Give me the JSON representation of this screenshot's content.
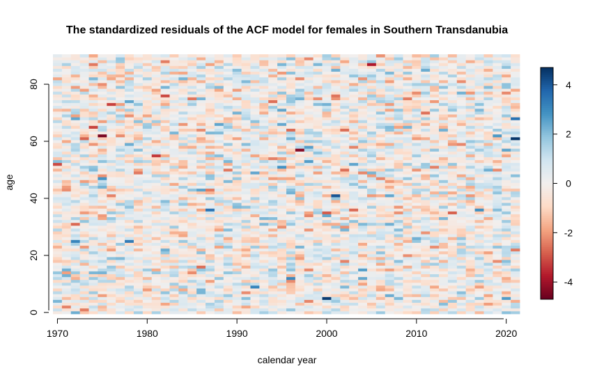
{
  "chart_data": {
    "type": "heatmap",
    "title": "The standardized residuals of the ACF model for females in Southern Transdanubia",
    "xlabel": "calendar year",
    "ylabel": "age",
    "x_range": [
      1970,
      2021
    ],
    "y_range": [
      0,
      90
    ],
    "x_ticks": [
      "1970",
      "1980",
      "1990",
      "2000",
      "2010",
      "2020"
    ],
    "y_ticks": [
      "0",
      "20",
      "40",
      "60",
      "80"
    ],
    "colorbar": {
      "range": [
        -4.7,
        4.7
      ],
      "ticks": [
        "4",
        "2",
        "0",
        "-2",
        "-4"
      ],
      "colors": [
        "#67001f",
        "#b2182b",
        "#d6604d",
        "#f4a582",
        "#fddbc7",
        "#f2efee",
        "#d1e5f0",
        "#92c5de",
        "#4393c3",
        "#2166ac",
        "#053061"
      ]
    },
    "notable_cells": [
      {
        "year": 1974,
        "age": 65,
        "value": -3.2
      },
      {
        "year": 1975,
        "age": 47,
        "value": 2.8
      },
      {
        "year": 1997,
        "age": 57,
        "value": -4.3
      },
      {
        "year": 2000,
        "age": 5,
        "value": 4.5
      },
      {
        "year": 2005,
        "age": 87,
        "value": -3.8
      },
      {
        "year": 2021,
        "age": 61,
        "value": 4.6
      },
      {
        "year": 2021,
        "age": 68,
        "value": 3.5
      }
    ]
  }
}
